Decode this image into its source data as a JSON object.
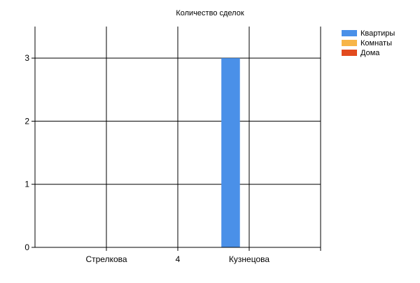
{
  "chart_data": {
    "type": "bar",
    "title": "Количество сделок",
    "categories": [
      "Стрелкова",
      "4",
      "Кузнецова"
    ],
    "series": [
      {
        "name": "Квартиры",
        "color": "#4a90e8",
        "values": [
          0,
          0,
          3
        ]
      },
      {
        "name": "Комнаты",
        "color": "#f7b548",
        "values": [
          0,
          0,
          0
        ]
      },
      {
        "name": "Дома",
        "color": "#e24a1e",
        "values": [
          0,
          0,
          0
        ]
      }
    ],
    "xlabel": "",
    "ylabel": "",
    "ylim": [
      0,
      3.5
    ],
    "yticks": [
      0,
      1,
      2,
      3
    ],
    "grid": true,
    "legend_position": "top-right"
  }
}
